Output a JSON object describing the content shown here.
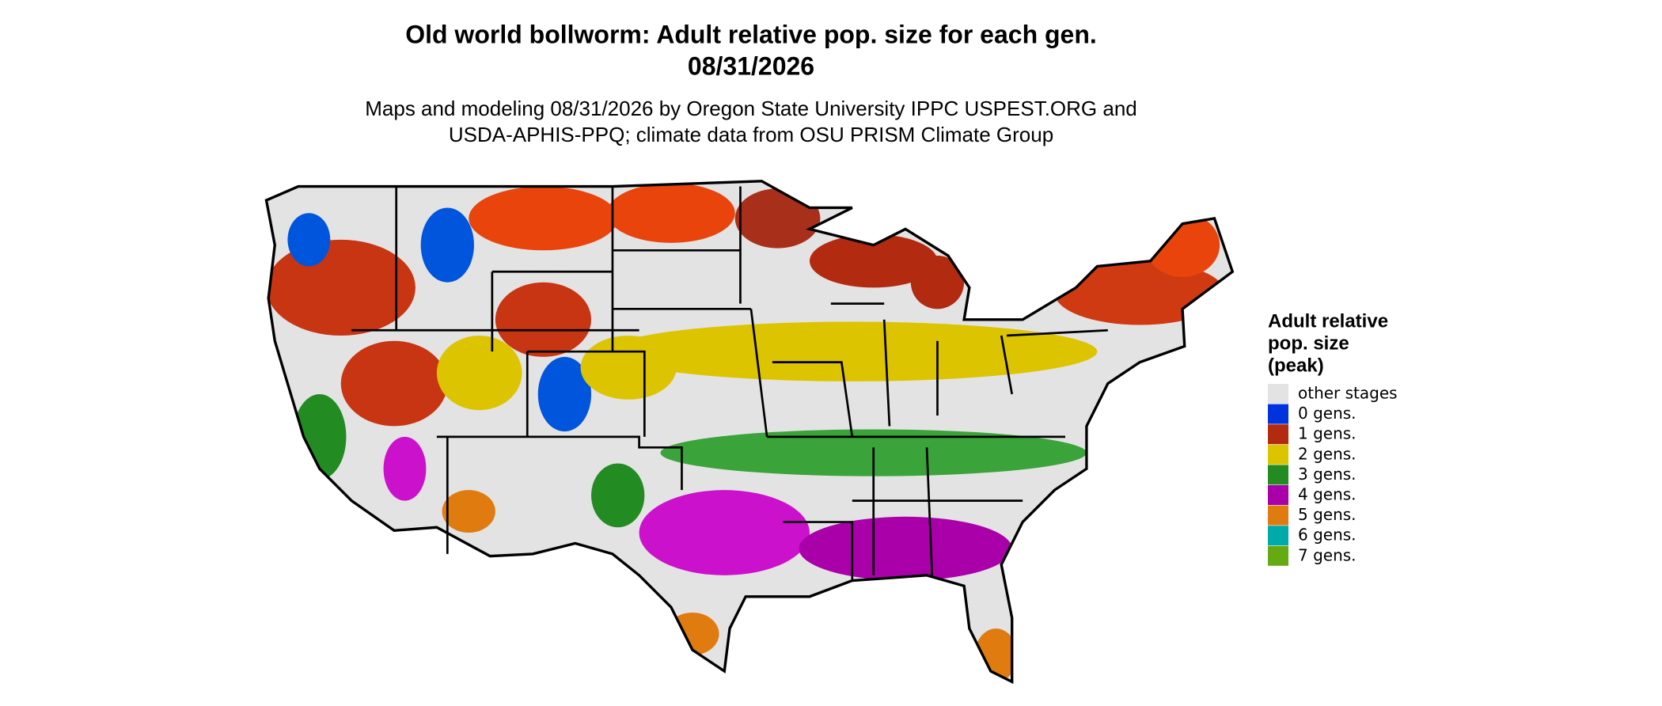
{
  "title": [
    "Old world bollworm: Adult relative pop. size for each gen.",
    "08/31/2026"
  ],
  "subtitle": [
    "Maps and modeling 08/31/2026 by Oregon State University IPPC USPEST.ORG and",
    "USDA-APHIS-PPQ; climate data from OSU PRISM Climate Group"
  ],
  "legend": {
    "title": [
      "Adult relative",
      "pop. size",
      "(peak)"
    ],
    "items": [
      {
        "label": "other stages",
        "color": "#e3e3e3"
      },
      {
        "label": "0 gens.",
        "color": "#0033dd"
      },
      {
        "label": "1 gens.",
        "color": "#b22a10"
      },
      {
        "label": "2 gens.",
        "color": "#ddc400"
      },
      {
        "label": "3 gens.",
        "color": "#228b22"
      },
      {
        "label": "4 gens.",
        "color": "#aa00aa"
      },
      {
        "label": "5 gens.",
        "color": "#e07b10"
      },
      {
        "label": "6 gens.",
        "color": "#00aaaa"
      },
      {
        "label": "7 gens.",
        "color": "#66aa11"
      }
    ]
  }
}
